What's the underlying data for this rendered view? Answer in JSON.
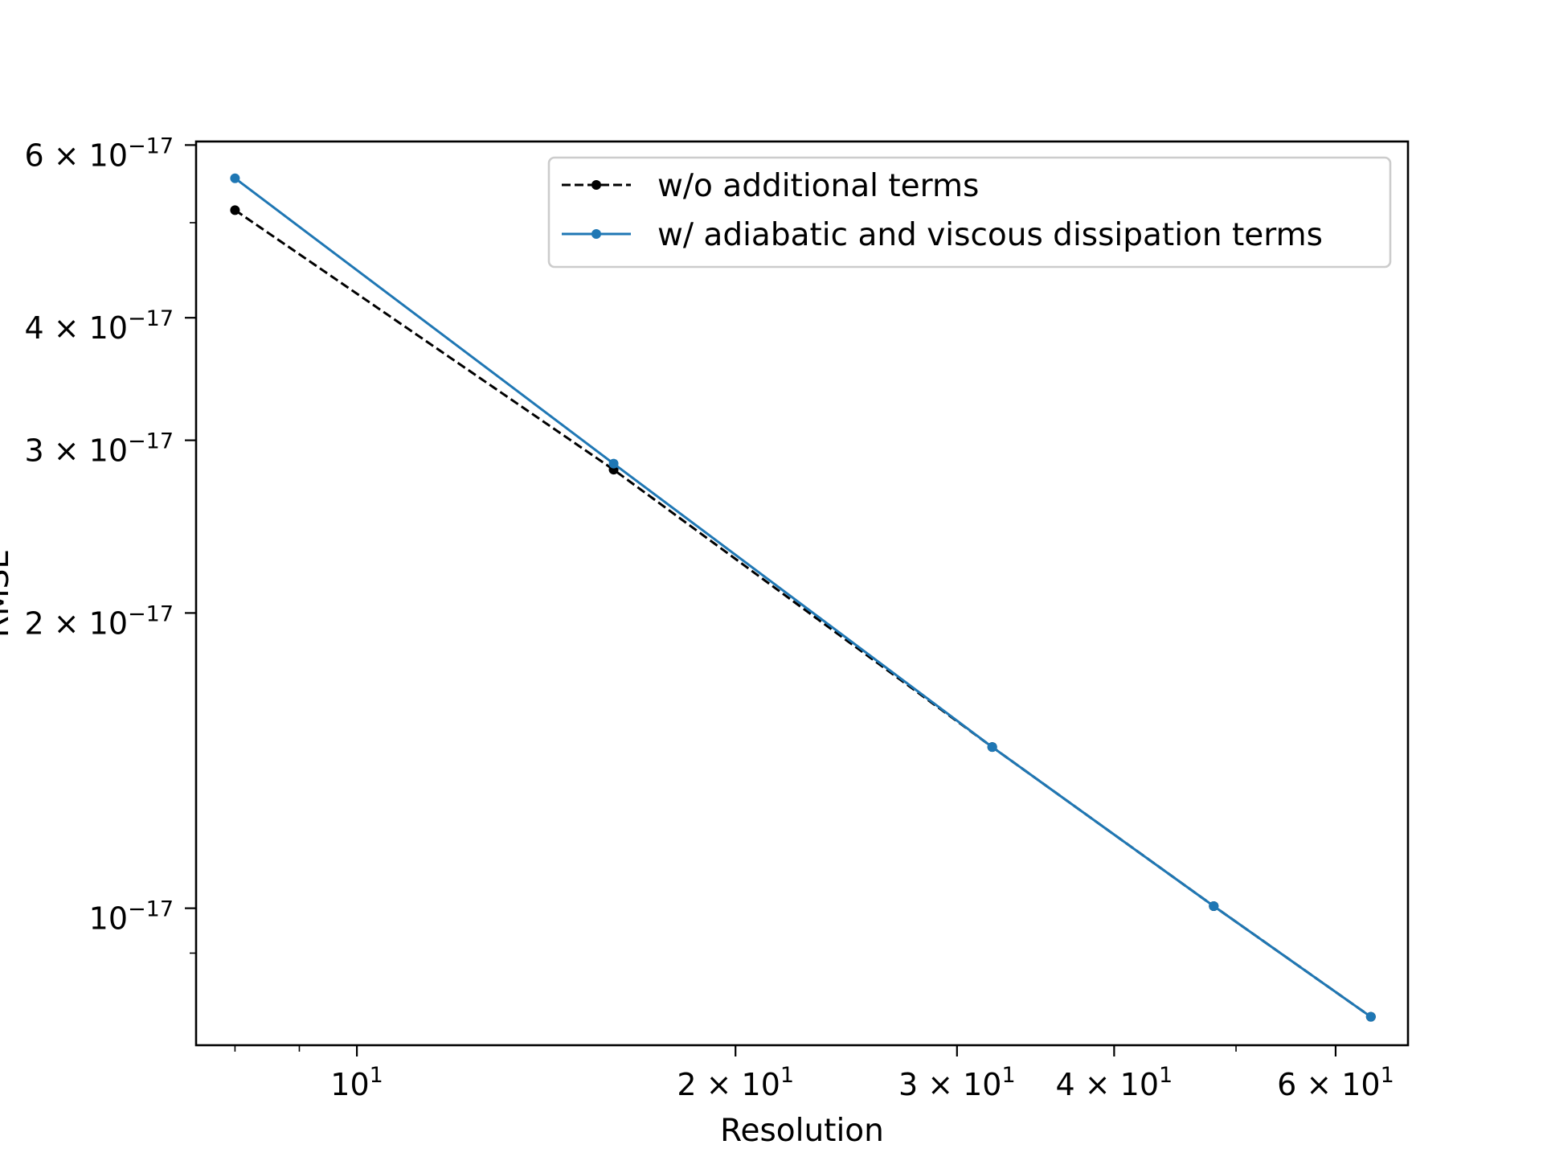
{
  "chart_data": {
    "type": "line",
    "title": "",
    "xlabel": "Resolution",
    "ylabel": "RMSE",
    "xscale": "log",
    "yscale": "log",
    "xlim": [
      7.45,
      68.5
    ],
    "ylim": [
      7.25e-18,
      6.05e-17
    ],
    "grid": false,
    "legend_position": "upper right",
    "x": [
      8,
      16,
      32,
      48,
      64
    ],
    "series": [
      {
        "name": "w/o additional terms",
        "color": "#000000",
        "linestyle": "dashed",
        "marker": "dot",
        "values": [
          5.15e-17,
          2.8e-17,
          1.46e-17,
          1.005e-17,
          7.75e-18
        ]
      },
      {
        "name": "w/ adiabatic and viscous dissipation terms",
        "color": "#1f77b4",
        "linestyle": "solid",
        "marker": "dot",
        "values": [
          5.55e-17,
          2.84e-17,
          1.46e-17,
          1.005e-17,
          7.75e-18
        ]
      }
    ],
    "x_major_ticks": [
      {
        "value": 10,
        "base": "10",
        "exp": "1"
      },
      {
        "value": 20,
        "base": "2 × 10",
        "exp": "1"
      },
      {
        "value": 30,
        "base": "3 × 10",
        "exp": "1"
      },
      {
        "value": 40,
        "base": "4 × 10",
        "exp": "1"
      },
      {
        "value": 60,
        "base": "6 × 10",
        "exp": "1"
      }
    ],
    "x_minor_ticks": [
      8,
      9,
      50
    ],
    "y_major_ticks": [
      {
        "value": 1e-17,
        "base": "10",
        "exp": "−17"
      },
      {
        "value": 2e-17,
        "base": "2 × 10",
        "exp": "−17"
      },
      {
        "value": 3e-17,
        "base": "3 × 10",
        "exp": "−17"
      },
      {
        "value": 4e-17,
        "base": "4 × 10",
        "exp": "−17"
      },
      {
        "value": 6e-17,
        "base": "6 × 10",
        "exp": "−17"
      }
    ],
    "y_minor_ticks": [
      9e-18,
      5e-17
    ]
  }
}
